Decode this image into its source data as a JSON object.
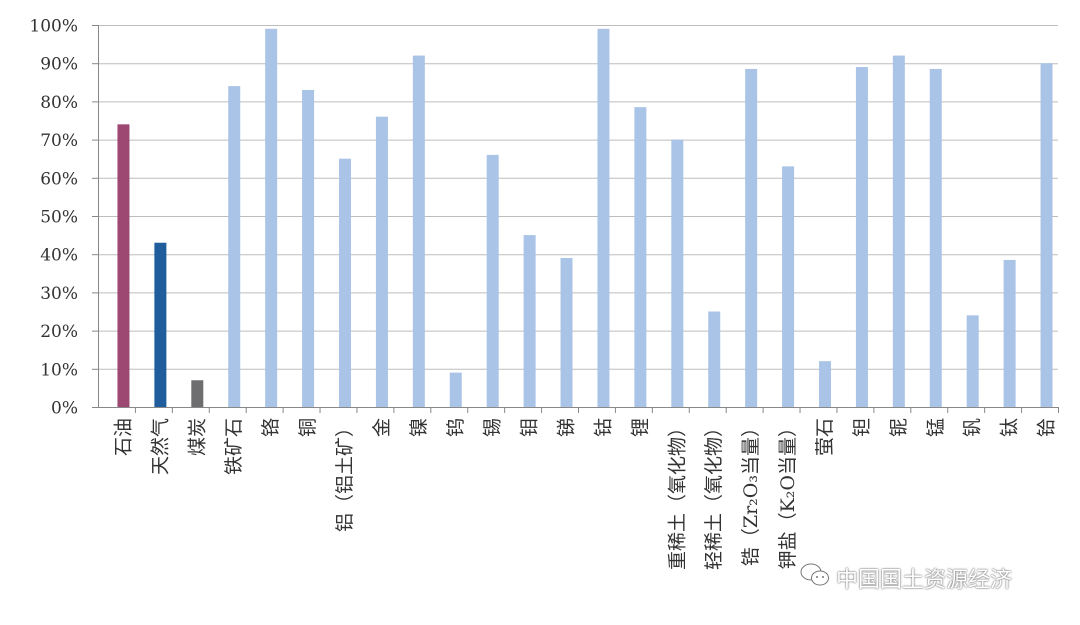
{
  "chart_data": {
    "type": "bar",
    "title": "",
    "xlabel": "",
    "ylabel": "",
    "ylim": [
      0,
      100
    ],
    "y_unit": "%",
    "yticks": [
      "0%",
      "10%",
      "20%",
      "30%",
      "40%",
      "50%",
      "60%",
      "70%",
      "80%",
      "90%",
      "100%"
    ],
    "grid": true,
    "legend": "none",
    "categories": [
      "石油",
      "天然气",
      "煤炭",
      "铁矿石",
      "铬",
      "铜",
      "铝（铝土矿）",
      "金",
      "镍",
      "钨",
      "锡",
      "钼",
      "锑",
      "钴",
      "锂",
      "重稀土（氧化物）",
      "轻稀土（氧化物）",
      "锆（Zr₂O₃当量）",
      "钾盐（K₂O当量）",
      "萤石",
      "钽",
      "铌",
      "锰",
      "钒",
      "钛",
      "铪"
    ],
    "values": [
      74,
      43,
      7,
      84,
      99,
      83,
      65,
      76,
      92,
      9,
      66,
      45,
      39,
      99,
      78.5,
      70,
      25,
      88.5,
      63,
      12,
      89,
      92,
      88.5,
      24,
      38.5,
      90
    ],
    "colors": [
      "#9c4873",
      "#1f5d9c",
      "#6e6d70",
      "#aac4e7",
      "#aac4e7",
      "#aac4e7",
      "#aac4e7",
      "#aac4e7",
      "#aac4e7",
      "#aac4e7",
      "#aac4e7",
      "#aac4e7",
      "#aac4e7",
      "#aac4e7",
      "#aac4e7",
      "#aac4e7",
      "#aac4e7",
      "#aac4e7",
      "#aac4e7",
      "#aac4e7",
      "#aac4e7",
      "#aac4e7",
      "#aac4e7",
      "#aac4e7",
      "#aac4e7",
      "#aac4e7"
    ]
  },
  "watermark": {
    "text": "中国国土资源经济",
    "icon": "wechat-icon"
  }
}
